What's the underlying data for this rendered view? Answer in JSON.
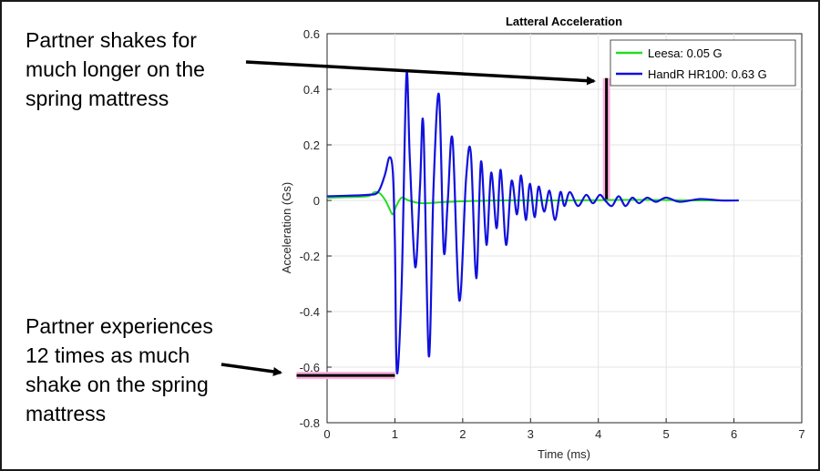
{
  "annotations": {
    "top": [
      "Partner shakes for",
      "much longer on the",
      "spring mattress"
    ],
    "bottom": [
      "Partner experiences",
      "12 times as much",
      "shake on the spring",
      "mattress"
    ]
  },
  "chart_data": {
    "type": "line",
    "title": "Latteral Acceleration",
    "xlabel": "Time (ms)",
    "ylabel": "Acceleration (Gs)",
    "xlim": [
      0,
      7
    ],
    "ylim": [
      -0.8,
      0.6
    ],
    "xticks": [
      "0",
      "1",
      "2",
      "3",
      "4",
      "5",
      "6",
      "7"
    ],
    "yticks": [
      "-0.8",
      "-0.6",
      "-0.4",
      "-0.2",
      "0",
      "0.2",
      "0.4",
      "0.6"
    ],
    "grid": true,
    "legend_position": "top-right",
    "series": [
      {
        "name": "Leesa: 0.05 G",
        "color": "#22dd22",
        "x": [
          0,
          0.3,
          0.6,
          0.7,
          0.78,
          0.86,
          0.92,
          0.97,
          1.02,
          1.1,
          1.2,
          1.4,
          1.8,
          2.5,
          3.5,
          4.5,
          5.5,
          6.07
        ],
        "y": [
          0.01,
          0.012,
          0.015,
          0.03,
          0.025,
          0.0,
          -0.03,
          -0.05,
          -0.02,
          0.01,
          0.0,
          -0.01,
          -0.005,
          0.0,
          0.0,
          0.002,
          0.0,
          0.0
        ]
      },
      {
        "name": "HandR HR100: 0.63 G",
        "color": "#1010dd",
        "x": [
          0,
          0.3,
          0.6,
          0.75,
          0.85,
          0.92,
          0.97,
          1.0,
          1.03,
          1.1,
          1.17,
          1.22,
          1.3,
          1.37,
          1.42,
          1.5,
          1.57,
          1.65,
          1.72,
          1.78,
          1.85,
          1.95,
          2.05,
          2.12,
          2.2,
          2.27,
          2.35,
          2.42,
          2.5,
          2.56,
          2.64,
          2.72,
          2.8,
          2.86,
          2.93,
          2.99,
          3.06,
          3.12,
          3.2,
          3.28,
          3.36,
          3.44,
          3.5,
          3.58,
          3.7,
          3.82,
          3.92,
          4.02,
          4.1,
          4.2,
          4.3,
          4.4,
          4.5,
          4.6,
          4.72,
          4.85,
          5.0,
          5.2,
          5.5,
          5.8,
          6.07
        ],
        "y": [
          0.015,
          0.017,
          0.02,
          0.03,
          0.09,
          0.155,
          0.1,
          -0.15,
          -0.62,
          -0.3,
          0.45,
          0.15,
          -0.24,
          0.05,
          0.27,
          -0.56,
          0.05,
          0.38,
          -0.18,
          0.0,
          0.22,
          -0.36,
          0.08,
          0.17,
          -0.28,
          0.14,
          -0.16,
          0.1,
          -0.1,
          0.11,
          -0.16,
          0.07,
          -0.05,
          0.09,
          -0.07,
          0.06,
          -0.06,
          0.05,
          -0.04,
          0.035,
          -0.07,
          0.03,
          -0.02,
          0.03,
          -0.02,
          0.02,
          -0.01,
          0.02,
          0.0,
          -0.02,
          0.015,
          -0.02,
          0.01,
          -0.01,
          0.01,
          -0.005,
          0.01,
          -0.005,
          0.005,
          0.0,
          0.0
        ]
      }
    ],
    "highlights": [
      {
        "kind": "vertical",
        "x": 4.12,
        "y_from": 0.0,
        "y_to": 0.44,
        "color": "#ffb0e0"
      },
      {
        "kind": "horizontal",
        "y": -0.63,
        "x_from": -0.45,
        "x_to": 1.0,
        "color": "#ffb0e0"
      }
    ]
  }
}
